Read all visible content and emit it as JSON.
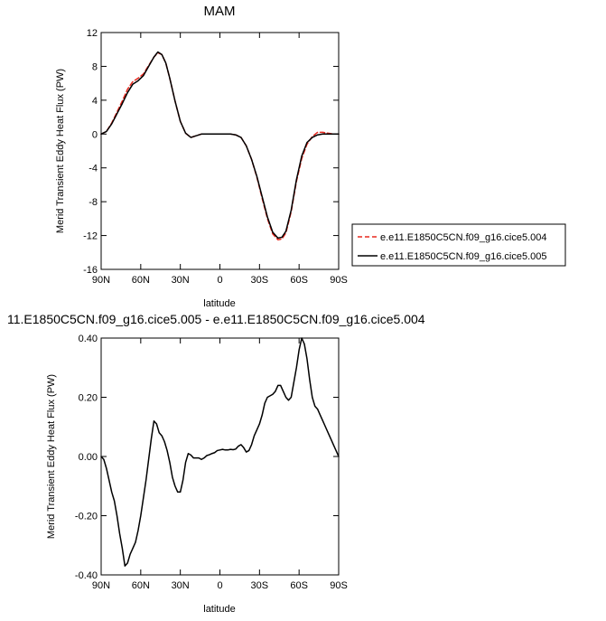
{
  "chart_data": [
    {
      "type": "line",
      "title": "MAM",
      "xlabel": "latitude",
      "ylabel": "Merid Transient Eddy Heat Flux (PW)",
      "xlim": [
        -90,
        90
      ],
      "ylim": [
        -16,
        12
      ],
      "xticks": [
        {
          "value": -90,
          "label": "90N"
        },
        {
          "value": -60,
          "label": "60N"
        },
        {
          "value": -30,
          "label": "30N"
        },
        {
          "value": 0,
          "label": "0"
        },
        {
          "value": 30,
          "label": "30S"
        },
        {
          "value": 60,
          "label": "60S"
        },
        {
          "value": 90,
          "label": "90S"
        }
      ],
      "yticks": [
        {
          "value": 12,
          "label": "12"
        },
        {
          "value": 8,
          "label": "8"
        },
        {
          "value": 4,
          "label": "4"
        },
        {
          "value": 0,
          "label": "0"
        },
        {
          "value": -4,
          "label": "-4"
        },
        {
          "value": -8,
          "label": "-8"
        },
        {
          "value": -12,
          "label": "-12"
        },
        {
          "value": -16,
          "label": "-16"
        }
      ],
      "legend_position": "right",
      "series": [
        {
          "name": "e.e11.E1850C5CN.f09_g16.cice5.004",
          "color": "#e8281e",
          "dash": "dashed",
          "x": [
            -90,
            -86,
            -82,
            -78,
            -74,
            -70,
            -66,
            -62,
            -58,
            -54,
            -50,
            -47,
            -44,
            -41,
            -38,
            -34,
            -30,
            -26,
            -22,
            -18,
            -14,
            -10,
            -6,
            -2,
            0,
            4,
            8,
            12,
            16,
            20,
            24,
            28,
            32,
            36,
            40,
            44,
            47,
            50,
            54,
            58,
            62,
            66,
            70,
            74,
            78,
            82,
            86,
            90
          ],
          "y": [
            0,
            0.3,
            1.3,
            2.6,
            3.9,
            5.3,
            6.2,
            6.6,
            7.1,
            8.1,
            9.1,
            9.6,
            9.4,
            8.4,
            6.6,
            3.9,
            1.5,
            0.1,
            -0.4,
            -0.2,
            0,
            0,
            0,
            0,
            0,
            0,
            0,
            -0.1,
            -0.4,
            -1.4,
            -3.0,
            -5.1,
            -7.6,
            -10.0,
            -11.8,
            -12.5,
            -12.4,
            -11.7,
            -9.2,
            -5.6,
            -2.9,
            -1.2,
            -0.3,
            0.2,
            0.2,
            0.1,
            0,
            0
          ]
        },
        {
          "name": "e.e11.E1850C5CN.f09_g16.cice5.005",
          "color": "#000000",
          "dash": "solid",
          "x": [
            -90,
            -86,
            -82,
            -78,
            -74,
            -70,
            -66,
            -62,
            -58,
            -54,
            -50,
            -47,
            -44,
            -41,
            -38,
            -34,
            -30,
            -26,
            -22,
            -18,
            -14,
            -10,
            -6,
            -2,
            0,
            4,
            8,
            12,
            16,
            20,
            24,
            28,
            32,
            36,
            40,
            44,
            47,
            50,
            54,
            58,
            62,
            66,
            70,
            74,
            78,
            82,
            86,
            90
          ],
          "y": [
            0,
            0.3,
            1.2,
            2.4,
            3.6,
            4.9,
            5.9,
            6.3,
            6.9,
            8.0,
            9.1,
            9.7,
            9.4,
            8.4,
            6.6,
            3.9,
            1.5,
            0.1,
            -0.4,
            -0.2,
            0,
            0,
            0,
            0,
            0,
            0,
            0,
            -0.1,
            -0.4,
            -1.4,
            -3.0,
            -5.0,
            -7.4,
            -9.8,
            -11.6,
            -12.3,
            -12.2,
            -11.5,
            -9.0,
            -5.4,
            -2.6,
            -1.0,
            -0.4,
            -0.1,
            0,
            0,
            0,
            0
          ]
        }
      ]
    },
    {
      "type": "line",
      "title": "11.E1850C5CN.f09_g16.cice5.005 - e.e11.E1850C5CN.f09_g16.cice5.004",
      "xlabel": "latitude",
      "ylabel": "Merid Transient Eddy Heat Flux (PW)",
      "xlim": [
        -90,
        90
      ],
      "ylim": [
        -0.4,
        0.4
      ],
      "xticks": [
        {
          "value": -90,
          "label": "90N"
        },
        {
          "value": -60,
          "label": "60N"
        },
        {
          "value": -30,
          "label": "30N"
        },
        {
          "value": 0,
          "label": "0"
        },
        {
          "value": 30,
          "label": "30S"
        },
        {
          "value": 60,
          "label": "60S"
        },
        {
          "value": 90,
          "label": "90S"
        }
      ],
      "yticks": [
        {
          "value": 0.4,
          "label": "0.40"
        },
        {
          "value": 0.2,
          "label": "0.20"
        },
        {
          "value": 0,
          "label": "0.00"
        },
        {
          "value": -0.2,
          "label": "-0.20"
        },
        {
          "value": -0.4,
          "label": "-0.40"
        }
      ],
      "series": [
        {
          "color": "#000000",
          "dash": "solid",
          "x": [
            -90,
            -88,
            -86,
            -84,
            -82,
            -80,
            -78,
            -76,
            -74,
            -72,
            -70,
            -68,
            -66,
            -64,
            -62,
            -60,
            -58,
            -56,
            -54,
            -52,
            -50,
            -48,
            -46,
            -44,
            -42,
            -40,
            -38,
            -36,
            -34,
            -32,
            -30,
            -28,
            -26,
            -24,
            -22,
            -20,
            -18,
            -16,
            -14,
            -12,
            -10,
            -8,
            -6,
            -4,
            -2,
            0,
            2,
            4,
            6,
            8,
            10,
            12,
            14,
            16,
            18,
            20,
            22,
            24,
            26,
            28,
            30,
            32,
            34,
            36,
            38,
            40,
            42,
            44,
            46,
            48,
            50,
            52,
            54,
            56,
            58,
            60,
            62,
            64,
            66,
            68,
            70,
            72,
            74,
            76,
            78,
            80,
            82,
            84,
            86,
            88,
            90
          ],
          "y": [
            0,
            -0.01,
            -0.04,
            -0.08,
            -0.12,
            -0.15,
            -0.2,
            -0.26,
            -0.31,
            -0.37,
            -0.36,
            -0.33,
            -0.31,
            -0.29,
            -0.25,
            -0.2,
            -0.14,
            -0.08,
            -0.01,
            0.06,
            0.12,
            0.11,
            0.08,
            0.07,
            0.05,
            0.02,
            -0.02,
            -0.07,
            -0.1,
            -0.12,
            -0.12,
            -0.08,
            -0.02,
            0.01,
            0.005,
            -0.005,
            -0.005,
            -0.005,
            -0.01,
            -0.005,
            0.003,
            0.006,
            0.01,
            0.013,
            0.02,
            0.022,
            0.024,
            0.022,
            0.022,
            0.024,
            0.023,
            0.025,
            0.035,
            0.04,
            0.03,
            0.015,
            0.02,
            0.04,
            0.07,
            0.09,
            0.11,
            0.14,
            0.18,
            0.2,
            0.205,
            0.21,
            0.22,
            0.24,
            0.24,
            0.22,
            0.2,
            0.19,
            0.2,
            0.25,
            0.3,
            0.36,
            0.4,
            0.38,
            0.33,
            0.26,
            0.2,
            0.17,
            0.16,
            0.14,
            0.12,
            0.1,
            0.08,
            0.06,
            0.04,
            0.02,
            0
          ]
        }
      ]
    }
  ]
}
